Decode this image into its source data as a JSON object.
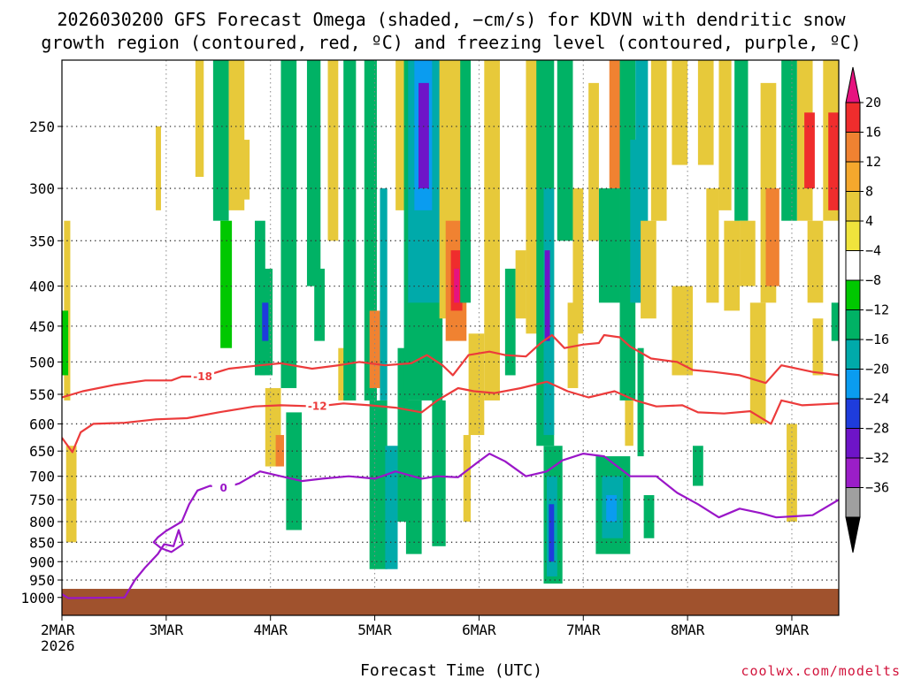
{
  "chart_data": {
    "type": "heatmap",
    "title_lines": [
      "2026030200 GFS Forecast Omega (shaded, −cm/s) for KDVN with dendritic snow",
      "growth region (contoured, red, ºC) and freezing level (contoured, purple, ºC)"
    ],
    "xlabel": "Forecast Time (UTC)",
    "credit": "coolwx.com/modelts",
    "x_ticks": [
      {
        "label": "2MAR",
        "sub": "2026",
        "t": 0
      },
      {
        "label": "3MAR",
        "t": 1
      },
      {
        "label": "4MAR",
        "t": 2
      },
      {
        "label": "5MAR",
        "t": 3
      },
      {
        "label": "6MAR",
        "t": 4
      },
      {
        "label": "7MAR",
        "t": 5
      },
      {
        "label": "8MAR",
        "t": 6
      },
      {
        "label": "9MAR",
        "t": 7
      }
    ],
    "x_range_days": [
      0,
      7.45
    ],
    "y_ticks": [
      "250",
      "300",
      "350",
      "400",
      "450",
      "500",
      "550",
      "600",
      "650",
      "700",
      "750",
      "800",
      "850",
      "900",
      "950",
      "1000"
    ],
    "y_axis": "pressure (hPa), log scale",
    "y_range": [
      200,
      1050
    ],
    "colorbar": {
      "labels": [
        "20",
        "16",
        "12",
        "8",
        "4",
        "−4",
        "−8",
        "−12",
        "−16",
        "−20",
        "−24",
        "−28",
        "−32",
        "−36"
      ],
      "colors": [
        "#e6137f",
        "#ef2d2d",
        "#f08231",
        "#f5a82d",
        "#e7c93a",
        "#f0e43c",
        "#ffffff",
        "#00c800",
        "#00b265",
        "#00aaaa",
        "#0a9cf0",
        "#1e3cdc",
        "#6e14c8",
        "#9b1ec8",
        "#a0a0a0",
        "#000000"
      ]
    },
    "omega_cells": [
      {
        "t0": 0.02,
        "t1": 0.08,
        "p0": 330,
        "p1": 560,
        "v": 5
      },
      {
        "t0": 0.04,
        "t1": 0.14,
        "p0": 640,
        "p1": 850,
        "v": 6
      },
      {
        "t0": 0.0,
        "t1": 0.06,
        "p0": 430,
        "p1": 520,
        "v": -7
      },
      {
        "t0": 0.9,
        "t1": 0.95,
        "p0": 250,
        "p1": 320,
        "v": 5
      },
      {
        "t0": 1.28,
        "t1": 1.36,
        "p0": 200,
        "p1": 290,
        "v": 6
      },
      {
        "t0": 1.45,
        "t1": 1.6,
        "p0": 200,
        "p1": 330,
        "v": -8
      },
      {
        "t0": 1.52,
        "t1": 1.63,
        "p0": 330,
        "p1": 480,
        "v": -7
      },
      {
        "t0": 1.6,
        "t1": 1.75,
        "p0": 200,
        "p1": 320,
        "v": 5
      },
      {
        "t0": 1.72,
        "t1": 1.8,
        "p0": 260,
        "p1": 310,
        "v": 5
      },
      {
        "t0": 1.85,
        "t1": 1.95,
        "p0": 330,
        "p1": 520,
        "v": -8
      },
      {
        "t0": 1.9,
        "t1": 2.02,
        "p0": 380,
        "p1": 520,
        "v": -10
      },
      {
        "t0": 1.92,
        "t1": 1.98,
        "p0": 420,
        "p1": 470,
        "v": -21
      },
      {
        "t0": 1.95,
        "t1": 2.1,
        "p0": 540,
        "p1": 680,
        "v": 6
      },
      {
        "t0": 2.05,
        "t1": 2.13,
        "p0": 620,
        "p1": 680,
        "v": 10
      },
      {
        "t0": 2.1,
        "t1": 2.25,
        "p0": 200,
        "p1": 540,
        "v": -9
      },
      {
        "t0": 2.15,
        "t1": 2.3,
        "p0": 580,
        "p1": 820,
        "v": -8
      },
      {
        "t0": 2.35,
        "t1": 2.48,
        "p0": 200,
        "p1": 400,
        "v": -8
      },
      {
        "t0": 2.42,
        "t1": 2.52,
        "p0": 380,
        "p1": 470,
        "v": -8
      },
      {
        "t0": 2.55,
        "t1": 2.65,
        "p0": 200,
        "p1": 350,
        "v": 6
      },
      {
        "t0": 2.65,
        "t1": 2.78,
        "p0": 480,
        "p1": 560,
        "v": 7
      },
      {
        "t0": 2.7,
        "t1": 2.82,
        "p0": 200,
        "p1": 560,
        "v": -9
      },
      {
        "t0": 2.9,
        "t1": 3.02,
        "p0": 200,
        "p1": 560,
        "v": -10
      },
      {
        "t0": 2.95,
        "t1": 3.05,
        "p0": 430,
        "p1": 540,
        "v": 9
      },
      {
        "t0": 2.95,
        "t1": 3.12,
        "p0": 560,
        "p1": 920,
        "v": -10
      },
      {
        "t0": 3.05,
        "t1": 3.12,
        "p0": 300,
        "p1": 560,
        "v": -14
      },
      {
        "t0": 3.1,
        "t1": 3.22,
        "p0": 640,
        "p1": 920,
        "v": -12
      },
      {
        "t0": 3.2,
        "t1": 3.3,
        "p0": 200,
        "p1": 320,
        "v": 5
      },
      {
        "t0": 3.22,
        "t1": 3.32,
        "p0": 480,
        "p1": 800,
        "v": -8
      },
      {
        "t0": 3.28,
        "t1": 3.65,
        "p0": 200,
        "p1": 560,
        "v": -9
      },
      {
        "t0": 3.32,
        "t1": 3.62,
        "p0": 200,
        "p1": 420,
        "v": -13
      },
      {
        "t0": 3.38,
        "t1": 3.55,
        "p0": 200,
        "p1": 320,
        "v": -19
      },
      {
        "t0": 3.42,
        "t1": 3.52,
        "p0": 220,
        "p1": 300,
        "v": -26
      },
      {
        "t0": 3.3,
        "t1": 3.45,
        "p0": 560,
        "p1": 880,
        "v": -10
      },
      {
        "t0": 3.55,
        "t1": 3.68,
        "p0": 560,
        "p1": 860,
        "v": -8
      },
      {
        "t0": 3.62,
        "t1": 3.85,
        "p0": 200,
        "p1": 440,
        "v": 6
      },
      {
        "t0": 3.68,
        "t1": 3.88,
        "p0": 330,
        "p1": 470,
        "v": 11
      },
      {
        "t0": 3.73,
        "t1": 3.84,
        "p0": 360,
        "p1": 430,
        "v": 15
      },
      {
        "t0": 3.76,
        "t1": 3.81,
        "p0": 380,
        "p1": 420,
        "v": 19
      },
      {
        "t0": 3.82,
        "t1": 3.92,
        "p0": 200,
        "p1": 420,
        "v": -8
      },
      {
        "t0": 3.85,
        "t1": 3.92,
        "p0": 620,
        "p1": 800,
        "v": 6
      },
      {
        "t0": 3.9,
        "t1": 4.05,
        "p0": 460,
        "p1": 620,
        "v": 6
      },
      {
        "t0": 4.05,
        "t1": 4.2,
        "p0": 200,
        "p1": 560,
        "v": 5
      },
      {
        "t0": 4.25,
        "t1": 4.35,
        "p0": 380,
        "p1": 520,
        "v": -8
      },
      {
        "t0": 4.35,
        "t1": 4.45,
        "p0": 360,
        "p1": 440,
        "v": 6
      },
      {
        "t0": 4.45,
        "t1": 4.6,
        "p0": 200,
        "p1": 460,
        "v": 5
      },
      {
        "t0": 4.55,
        "t1": 4.72,
        "p0": 200,
        "p1": 640,
        "v": -9
      },
      {
        "t0": 4.62,
        "t1": 4.72,
        "p0": 300,
        "p1": 620,
        "v": -12
      },
      {
        "t0": 4.62,
        "t1": 4.8,
        "p0": 640,
        "p1": 960,
        "v": -10
      },
      {
        "t0": 4.65,
        "t1": 4.75,
        "p0": 700,
        "p1": 940,
        "v": -15
      },
      {
        "t0": 4.67,
        "t1": 4.72,
        "p0": 760,
        "p1": 900,
        "v": -22
      },
      {
        "t0": 4.63,
        "t1": 4.68,
        "p0": 360,
        "p1": 470,
        "v": -24
      },
      {
        "t0": 4.75,
        "t1": 4.9,
        "p0": 200,
        "p1": 350,
        "v": -8
      },
      {
        "t0": 4.85,
        "t1": 4.95,
        "p0": 420,
        "p1": 540,
        "v": 5
      },
      {
        "t0": 4.9,
        "t1": 5.0,
        "p0": 300,
        "p1": 460,
        "v": 6
      },
      {
        "t0": 5.05,
        "t1": 5.15,
        "p0": 220,
        "p1": 350,
        "v": 5
      },
      {
        "t0": 5.15,
        "t1": 5.3,
        "p0": 330,
        "p1": 400,
        "v": 5
      },
      {
        "t0": 5.25,
        "t1": 5.4,
        "p0": 200,
        "p1": 300,
        "v": 11
      },
      {
        "t0": 5.15,
        "t1": 5.35,
        "p0": 300,
        "p1": 420,
        "v": -10
      },
      {
        "t0": 5.12,
        "t1": 5.45,
        "p0": 660,
        "p1": 880,
        "v": -9
      },
      {
        "t0": 5.18,
        "t1": 5.38,
        "p0": 700,
        "p1": 840,
        "v": -13
      },
      {
        "t0": 5.22,
        "t1": 5.32,
        "p0": 740,
        "p1": 800,
        "v": -17
      },
      {
        "t0": 5.35,
        "t1": 5.5,
        "p0": 200,
        "p1": 560,
        "v": -9
      },
      {
        "t0": 5.4,
        "t1": 5.48,
        "p0": 560,
        "p1": 640,
        "v": 6
      },
      {
        "t0": 5.45,
        "t1": 5.55,
        "p0": 260,
        "p1": 420,
        "v": -15
      },
      {
        "t0": 5.5,
        "t1": 5.62,
        "p0": 200,
        "p1": 420,
        "v": -12
      },
      {
        "t0": 5.55,
        "t1": 5.7,
        "p0": 330,
        "p1": 440,
        "v": 6
      },
      {
        "t0": 5.65,
        "t1": 5.8,
        "p0": 200,
        "p1": 330,
        "v": 5
      },
      {
        "t0": 5.52,
        "t1": 5.58,
        "p0": 480,
        "p1": 660,
        "v": -9
      },
      {
        "t0": 5.58,
        "t1": 5.68,
        "p0": 740,
        "p1": 840,
        "v": -8
      },
      {
        "t0": 5.85,
        "t1": 6.0,
        "p0": 200,
        "p1": 280,
        "v": 5
      },
      {
        "t0": 5.85,
        "t1": 6.05,
        "p0": 400,
        "p1": 520,
        "v": 6
      },
      {
        "t0": 6.05,
        "t1": 6.15,
        "p0": 640,
        "p1": 720,
        "v": -8
      },
      {
        "t0": 6.1,
        "t1": 6.25,
        "p0": 200,
        "p1": 280,
        "v": 6
      },
      {
        "t0": 6.18,
        "t1": 6.3,
        "p0": 300,
        "p1": 420,
        "v": 6
      },
      {
        "t0": 6.3,
        "t1": 6.42,
        "p0": 200,
        "p1": 320,
        "v": 5
      },
      {
        "t0": 6.35,
        "t1": 6.5,
        "p0": 330,
        "p1": 430,
        "v": 6
      },
      {
        "t0": 6.45,
        "t1": 6.58,
        "p0": 200,
        "p1": 330,
        "v": -9
      },
      {
        "t0": 6.5,
        "t1": 6.65,
        "p0": 330,
        "p1": 400,
        "v": 6
      },
      {
        "t0": 6.7,
        "t1": 6.85,
        "p0": 220,
        "p1": 420,
        "v": 5
      },
      {
        "t0": 6.75,
        "t1": 6.88,
        "p0": 300,
        "p1": 400,
        "v": 9
      },
      {
        "t0": 6.6,
        "t1": 6.75,
        "p0": 420,
        "p1": 600,
        "v": 5
      },
      {
        "t0": 6.9,
        "t1": 7.05,
        "p0": 200,
        "p1": 330,
        "v": -8
      },
      {
        "t0": 6.95,
        "t1": 7.05,
        "p0": 600,
        "p1": 800,
        "v": 6
      },
      {
        "t0": 7.05,
        "t1": 7.2,
        "p0": 200,
        "p1": 330,
        "v": 6
      },
      {
        "t0": 7.12,
        "t1": 7.22,
        "p0": 240,
        "p1": 300,
        "v": 13
      },
      {
        "t0": 7.15,
        "t1": 7.3,
        "p0": 330,
        "p1": 420,
        "v": 5
      },
      {
        "t0": 7.2,
        "t1": 7.3,
        "p0": 440,
        "p1": 520,
        "v": 6
      },
      {
        "t0": 7.3,
        "t1": 7.45,
        "p0": 200,
        "p1": 330,
        "v": 6
      },
      {
        "t0": 7.35,
        "t1": 7.45,
        "p0": 240,
        "p1": 320,
        "v": 12
      },
      {
        "t0": 7.38,
        "t1": 7.45,
        "p0": 420,
        "p1": 470,
        "v": -8
      }
    ],
    "dgz_contours": [
      {
        "label": "-18",
        "label_t": 1.4,
        "points": [
          [
            0,
            555
          ],
          [
            0.2,
            545
          ],
          [
            0.5,
            535
          ],
          [
            0.8,
            528
          ],
          [
            1.05,
            528
          ],
          [
            1.15,
            522
          ],
          [
            1.35,
            522
          ],
          [
            1.6,
            510
          ],
          [
            1.9,
            505
          ],
          [
            2.1,
            502
          ],
          [
            2.4,
            510
          ],
          [
            2.65,
            505
          ],
          [
            2.85,
            500
          ],
          [
            3.1,
            505
          ],
          [
            3.35,
            502
          ],
          [
            3.5,
            490
          ],
          [
            3.65,
            505
          ],
          [
            3.75,
            520
          ],
          [
            3.9,
            490
          ],
          [
            4.1,
            485
          ],
          [
            4.25,
            490
          ],
          [
            4.45,
            492
          ],
          [
            4.6,
            472
          ],
          [
            4.7,
            462
          ],
          [
            4.82,
            480
          ],
          [
            5.0,
            475
          ],
          [
            5.15,
            473
          ],
          [
            5.2,
            462
          ],
          [
            5.35,
            465
          ],
          [
            5.45,
            478
          ],
          [
            5.65,
            495
          ],
          [
            5.9,
            500
          ],
          [
            6.05,
            512
          ],
          [
            6.25,
            515
          ],
          [
            6.5,
            520
          ],
          [
            6.75,
            532
          ],
          [
            6.9,
            505
          ],
          [
            7.2,
            515
          ],
          [
            7.45,
            520
          ]
        ]
      },
      {
        "label": "-12",
        "label_t": 2.45,
        "points": [
          [
            0,
            625
          ],
          [
            0.1,
            652
          ],
          [
            0.18,
            615
          ],
          [
            0.3,
            600
          ],
          [
            0.6,
            598
          ],
          [
            0.9,
            592
          ],
          [
            1.2,
            590
          ],
          [
            1.5,
            580
          ],
          [
            1.85,
            570
          ],
          [
            2.1,
            568
          ],
          [
            2.45,
            570
          ],
          [
            2.7,
            565
          ],
          [
            2.95,
            568
          ],
          [
            3.2,
            572
          ],
          [
            3.45,
            580
          ],
          [
            3.6,
            560
          ],
          [
            3.8,
            540
          ],
          [
            3.95,
            545
          ],
          [
            4.15,
            548
          ],
          [
            4.4,
            540
          ],
          [
            4.65,
            530
          ],
          [
            4.85,
            545
          ],
          [
            5.05,
            555
          ],
          [
            5.3,
            545
          ],
          [
            5.5,
            560
          ],
          [
            5.7,
            570
          ],
          [
            5.95,
            568
          ],
          [
            6.1,
            580
          ],
          [
            6.35,
            582
          ],
          [
            6.6,
            578
          ],
          [
            6.8,
            600
          ],
          [
            6.9,
            560
          ],
          [
            7.1,
            568
          ],
          [
            7.45,
            565
          ]
        ]
      }
    ],
    "freezing_contours": [
      {
        "label": "0",
        "label_t": 1.55,
        "points": [
          [
            0,
            990
          ],
          [
            0.06,
            1002
          ],
          [
            0.6,
            1000
          ],
          [
            0.7,
            950
          ],
          [
            0.8,
            915
          ],
          [
            0.92,
            880
          ],
          [
            0.98,
            855
          ],
          [
            1.07,
            860
          ],
          [
            1.12,
            820
          ],
          [
            1.16,
            855
          ],
          [
            1.05,
            875
          ],
          [
            0.95,
            865
          ],
          [
            0.88,
            850
          ],
          [
            0.92,
            838
          ],
          [
            1.0,
            822
          ],
          [
            1.15,
            800
          ],
          [
            1.22,
            760
          ],
          [
            1.3,
            730
          ],
          [
            1.42,
            720
          ],
          [
            1.55,
            725
          ],
          [
            1.7,
            715
          ],
          [
            1.9,
            690
          ],
          [
            2.1,
            700
          ],
          [
            2.3,
            710
          ],
          [
            2.5,
            705
          ],
          [
            2.75,
            700
          ],
          [
            3.0,
            705
          ],
          [
            3.2,
            690
          ],
          [
            3.45,
            705
          ],
          [
            3.6,
            700
          ],
          [
            3.8,
            702
          ],
          [
            4.0,
            670
          ],
          [
            4.1,
            655
          ],
          [
            4.25,
            670
          ],
          [
            4.45,
            700
          ],
          [
            4.65,
            690
          ],
          [
            4.8,
            668
          ],
          [
            5.0,
            655
          ],
          [
            5.2,
            660
          ],
          [
            5.45,
            700
          ],
          [
            5.7,
            700
          ],
          [
            5.9,
            735
          ],
          [
            6.1,
            760
          ],
          [
            6.3,
            790
          ],
          [
            6.5,
            770
          ],
          [
            6.7,
            780
          ],
          [
            6.85,
            790
          ],
          [
            7.2,
            785
          ],
          [
            7.45,
            750
          ]
        ]
      }
    ],
    "ground_p": 975,
    "colorbar_rect_color": "#a0522d"
  }
}
